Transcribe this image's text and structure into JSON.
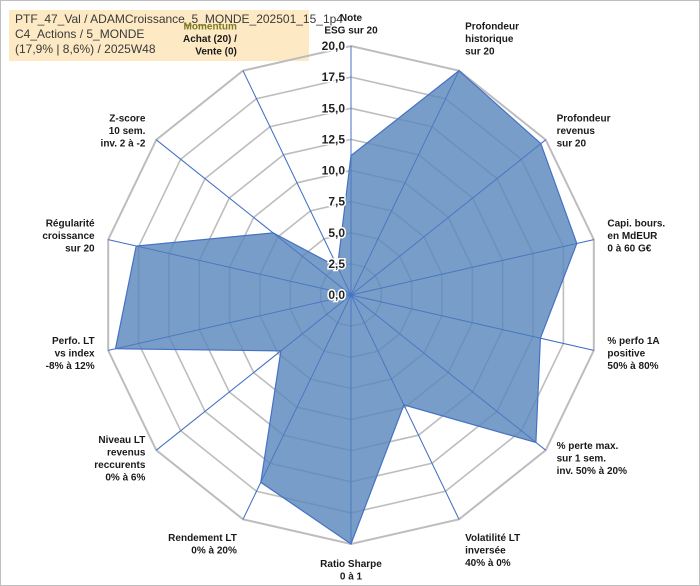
{
  "title": {
    "lines": [
      "PTF_47_Val / ADAMCroissance_5_MONDE_202501_15_1p4",
      "C4_Actions / 5_MONDE",
      "(17,9% | 8,6%) / 2025W48"
    ]
  },
  "colors": {
    "fill": "#5b87bd",
    "fill_opacity": "0.82",
    "outline": "#4472c4",
    "grid": "#bdbdbd",
    "spoke": "#4472c4",
    "highlight_label": "#7a7a1f"
  },
  "chart_data": {
    "type": "radar",
    "title": "",
    "rmin": 0,
    "rmax": 20,
    "ticks": [
      "0,0",
      "2,5",
      "5,0",
      "7,5",
      "10,0",
      "12,5",
      "15,0",
      "17,5",
      "20,0"
    ],
    "tick_values": [
      0,
      2.5,
      5,
      7.5,
      10,
      12.5,
      15,
      17.5,
      20
    ],
    "axes": [
      {
        "label_lines": [
          "Note",
          "ESG sur 20"
        ],
        "value": 11.2
      },
      {
        "label_lines": [
          "Profondeur",
          "historique",
          "sur 20"
        ],
        "value": 20.0
      },
      {
        "label_lines": [
          "Profondeur",
          "revenus",
          "sur 20"
        ],
        "value": 19.5
      },
      {
        "label_lines": [
          "Capi. bours.",
          "en MdEUR",
          "0 à 60 G€"
        ],
        "value": 18.6
      },
      {
        "label_lines": [
          "% perfo 1A",
          "positive",
          "50% à 80%"
        ],
        "value": 15.6
      },
      {
        "label_lines": [
          "% perte max.",
          "sur 1 sem.",
          "inv. 50% à 20%"
        ],
        "value": 19.0
      },
      {
        "label_lines": [
          "Volatilité LT",
          "inversée",
          "40% à 0%"
        ],
        "value": 9.8
      },
      {
        "label_lines": [
          "Ratio Sharpe",
          "0 à 1"
        ],
        "value": 20.0
      },
      {
        "label_lines": [
          "Rendement LT",
          "0% à 20%"
        ],
        "value": 16.7
      },
      {
        "label_lines": [
          "Niveau LT",
          "revenus",
          "reccurents",
          "0% à 6%"
        ],
        "value": 7.2
      },
      {
        "label_lines": [
          "Perfo. LT",
          "vs index",
          "-8% à 12%"
        ],
        "value": 19.4
      },
      {
        "label_lines": [
          "Régularité",
          "croissance",
          "sur 20"
        ],
        "value": 17.7
      },
      {
        "label_lines": [
          "Z-score",
          "10 sem.",
          "inv. 2 à -2"
        ],
        "value": 8.0
      },
      {
        "label_lines": [
          "Momentum",
          "Achat (20) /",
          "Vente (0)"
        ],
        "value": 2.5
      }
    ]
  }
}
